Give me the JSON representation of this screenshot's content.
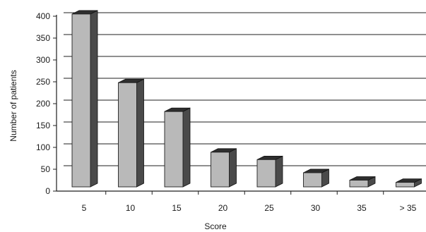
{
  "chart_data": {
    "type": "bar",
    "categories": [
      "5",
      "10",
      "15",
      "20",
      "25",
      "30",
      "35",
      "> 35"
    ],
    "values": [
      405,
      248,
      182,
      89,
      72,
      42,
      25,
      20
    ],
    "xlabel": "Score",
    "ylabel": "Number of patients",
    "ylim": [
      0,
      400
    ],
    "yticks": [
      "0",
      "50",
      "100",
      "150",
      "200",
      "250",
      "300",
      "350",
      "400"
    ],
    "grid": true,
    "style": "3d-bar",
    "colors": {
      "bar_front": "#b9b9b9",
      "bar_side": "#4a4a4a",
      "bar_top": "#2e2e2e",
      "grid": "#1f1f1f",
      "axis": "#1f1f1f"
    }
  }
}
